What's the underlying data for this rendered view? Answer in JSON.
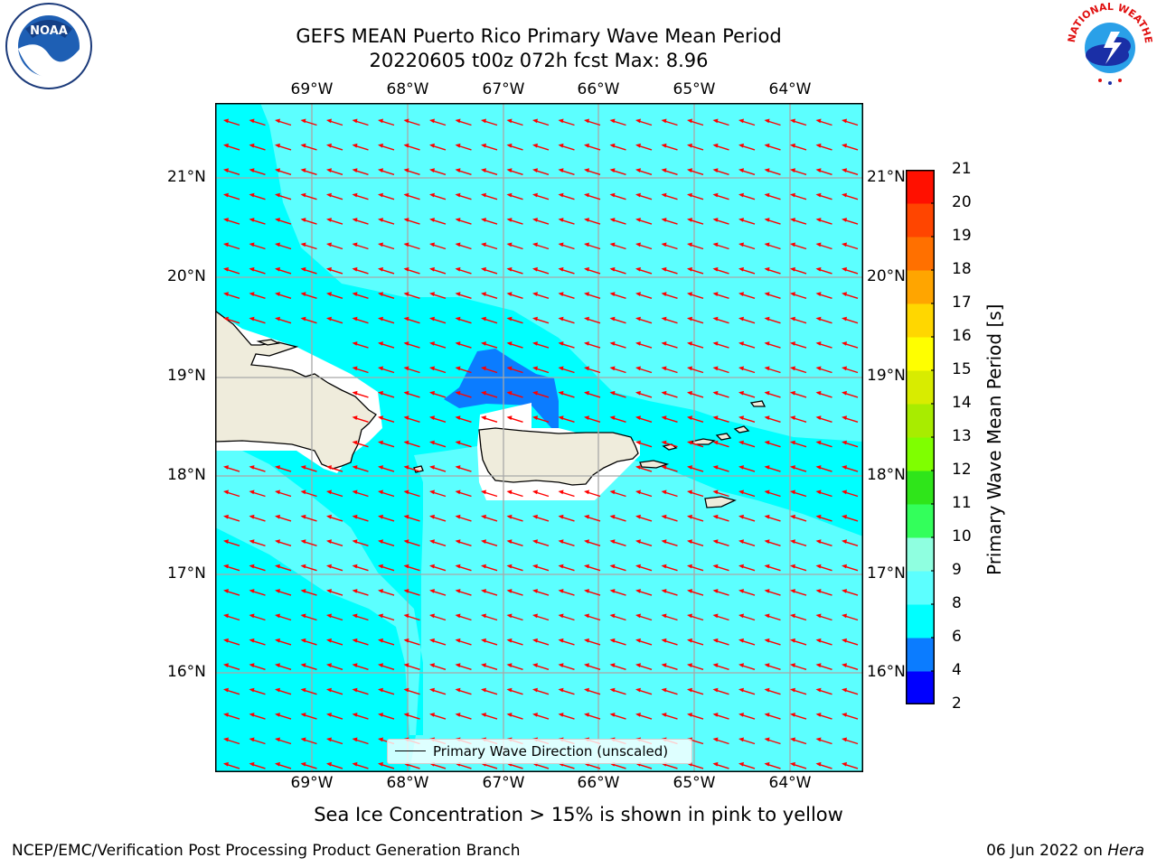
{
  "figure": {
    "title_line1": "GEFS MEAN Puerto Rico Primary Wave Mean Period",
    "title_line2": "20220605 t00z 072h fcst   Max: 8.96",
    "subtitle": "Sea Ice Concentration > 15% is shown in pink to yellow",
    "footer_left": "NCEP/EMC/Verification Post Processing Product Generation Branch",
    "footer_date": "06 Jun 2022 on ",
    "footer_host": "Hera"
  },
  "logos": {
    "noaa_text": "NOAA",
    "nws_text": "NATIONAL WEATHER SERVICE"
  },
  "map": {
    "lon_labels": [
      "69°W",
      "68°W",
      "67°W",
      "66°W",
      "65°W",
      "64°W"
    ],
    "lat_labels": [
      "21°N",
      "20°N",
      "19°N",
      "18°N",
      "17°N",
      "16°N"
    ],
    "land_color": "#efecdc",
    "arrow_color": "#ff0000",
    "legend_label": "Primary Wave Direction (unscaled)"
  },
  "colorbar": {
    "label": "Primary Wave Mean Period [s]",
    "ticks": [
      "2",
      "4",
      "6",
      "8",
      "9",
      "10",
      "11",
      "12",
      "13",
      "14",
      "15",
      "16",
      "17",
      "18",
      "19",
      "20",
      "21"
    ],
    "colors": [
      "#0000ff",
      "#0b7cff",
      "#00ffff",
      "#5cffff",
      "#8fffe0",
      "#33ff5b",
      "#2fe51a",
      "#7fff00",
      "#a8ec00",
      "#d8ec00",
      "#ffff00",
      "#ffd700",
      "#ffa500",
      "#ff7000",
      "#ff4500",
      "#ff1000"
    ]
  }
}
